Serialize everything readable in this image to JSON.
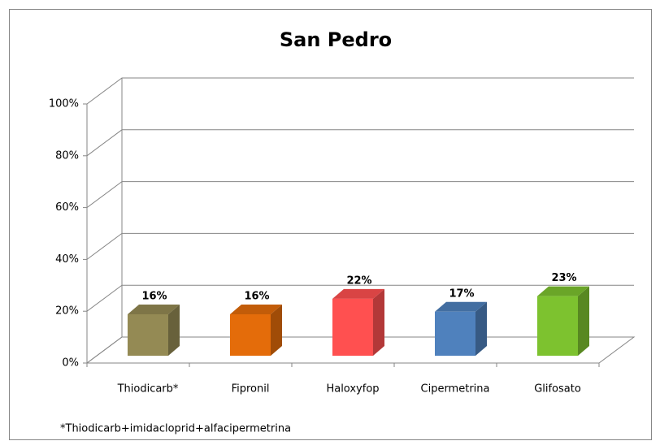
{
  "chart_data": {
    "type": "bar3d",
    "title": "San Pedro",
    "categories": [
      "Thiodicarb*",
      "Fipronil",
      "Haloxyfop",
      "Cipermetrina",
      "Glifosato"
    ],
    "values": [
      16,
      16,
      22,
      17,
      23
    ],
    "value_labels": [
      "16%",
      "16%",
      "22%",
      "17%",
      "23%"
    ],
    "colors": [
      "#948a54",
      "#e46c0a",
      "#ff5050",
      "#4f81bd",
      "#7dc22f"
    ],
    "ylim": [
      0,
      100
    ],
    "yticks": [
      {
        "value": 0,
        "label": "0%"
      },
      {
        "value": 20,
        "label": "20%"
      },
      {
        "value": 40,
        "label": "40%"
      },
      {
        "value": 60,
        "label": "60%"
      },
      {
        "value": 80,
        "label": "80%"
      },
      {
        "value": 100,
        "label": "100%"
      }
    ],
    "grid": true,
    "annotation": "*Thiodicarb+imidacloprid+alfacipermetrina"
  }
}
